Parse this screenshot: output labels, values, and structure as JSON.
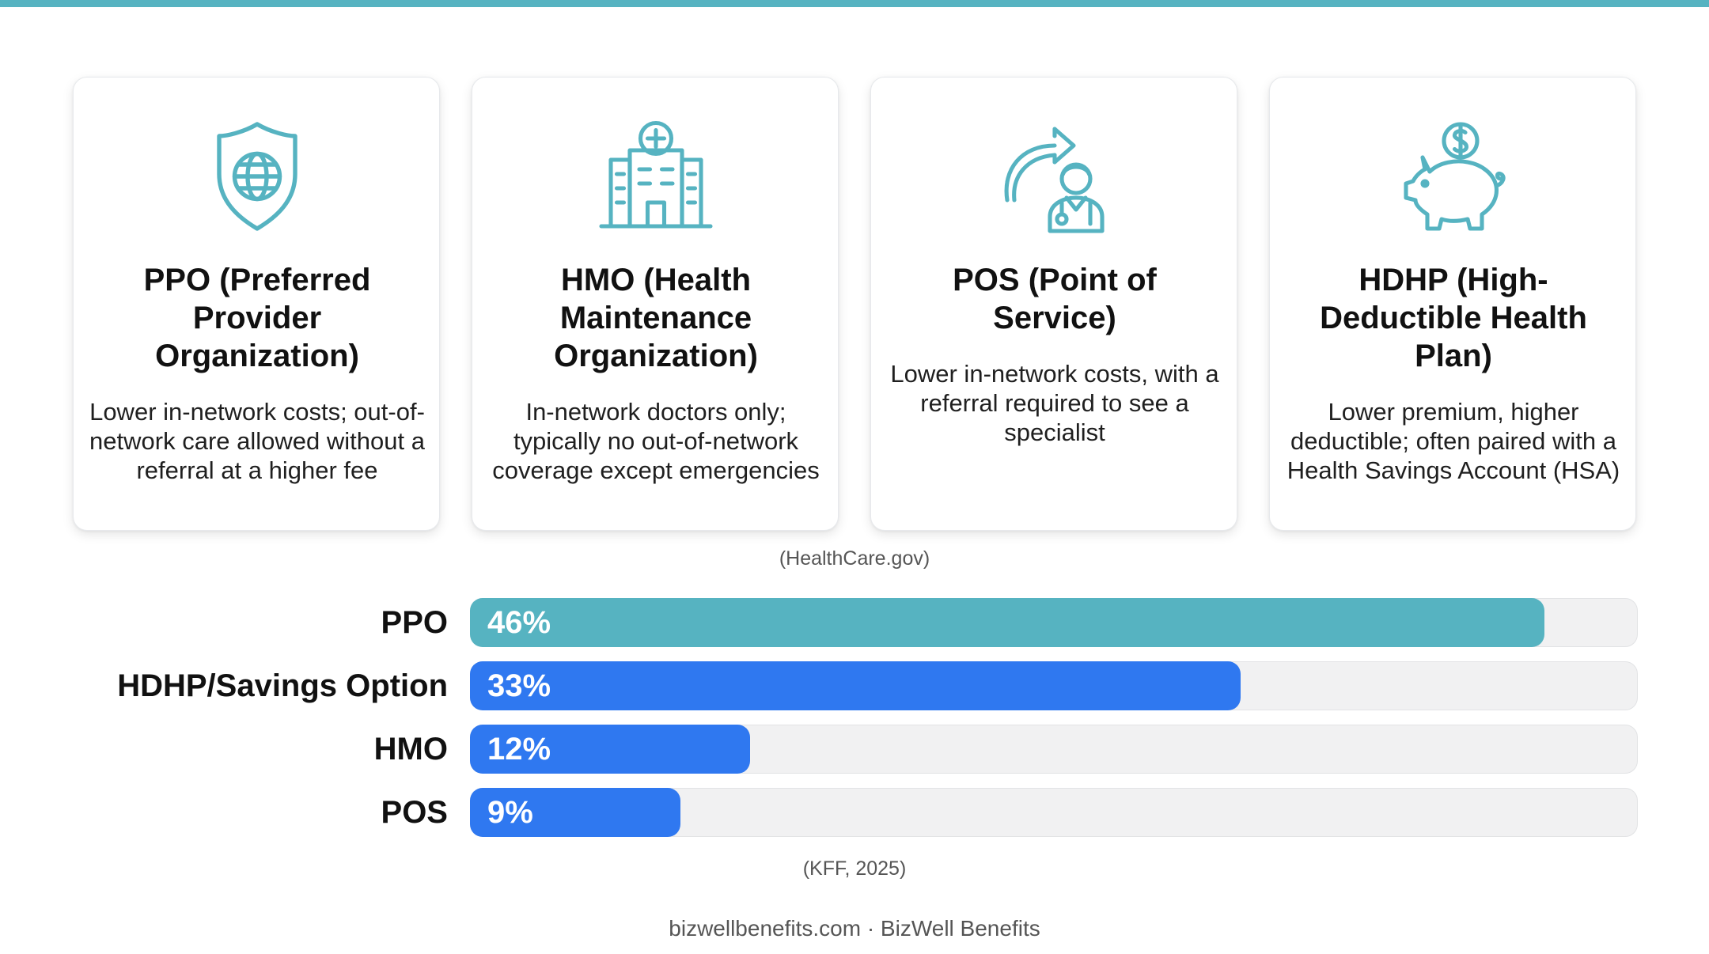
{
  "colors": {
    "accent_teal": "#56b3c1",
    "bar_blue": "#2f78f0",
    "track": "#f1f1f2"
  },
  "cards": [
    {
      "icon": "shield-globe-icon",
      "title": "PPO (Preferred Provider Organization)",
      "description": "Lower in-network costs; out-of-network care allowed without a referral at a higher fee"
    },
    {
      "icon": "hospital-icon",
      "title": "HMO (Health Maintenance Organization)",
      "description": "In-network doctors only; typically no out-of-network coverage except emergencies"
    },
    {
      "icon": "referral-doctor-icon",
      "title": "POS (Point of Service)",
      "description": "Lower in-network costs, with a referral required to see a specialist"
    },
    {
      "icon": "piggy-bank-dollar-icon",
      "title": "HDHP (High-Deductible Health Plan)",
      "description": "Lower premium, higher deductible; often paired with a Health Savings Account (HSA)"
    }
  ],
  "sources": {
    "cards": "(HealthCare.gov)",
    "chart": "(KFF, 2025)"
  },
  "chart_data": {
    "type": "bar",
    "orientation": "horizontal",
    "categories": [
      "PPO",
      "HDHP/Savings Option",
      "HMO",
      "POS"
    ],
    "values": [
      46,
      33,
      12,
      9
    ],
    "value_labels": [
      "46%",
      "33%",
      "12%",
      "9%"
    ],
    "xlim": [
      0,
      50
    ],
    "bar_colors": [
      "#56b3c1",
      "#2f78f0",
      "#2f78f0",
      "#2f78f0"
    ],
    "grid": false
  },
  "footer": "bizwellbenefits.com · BizWell Benefits"
}
